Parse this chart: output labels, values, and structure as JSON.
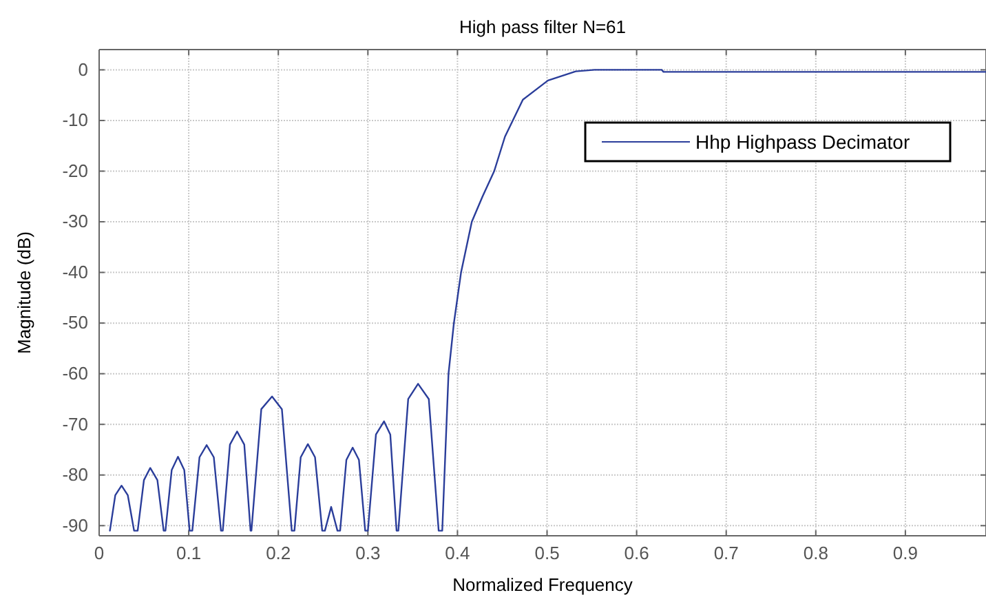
{
  "chart_data": {
    "type": "line",
    "title": "High pass filter N=61",
    "xlabel": "Normalized Frequency",
    "ylabel": "Magnitude (dB)",
    "xlim": [
      0,
      0.99
    ],
    "xticks": [
      0,
      0.1,
      0.2,
      0.3,
      0.4,
      0.5,
      0.6,
      0.7,
      0.8,
      0.9
    ],
    "ylim": [
      -92,
      4
    ],
    "yticks": [
      0,
      -10,
      -20,
      -30,
      -40,
      -50,
      -60,
      -70,
      -80,
      -90
    ],
    "grid": true,
    "legend": "top right",
    "marker": "none",
    "line_style": "solid",
    "series": [
      {
        "name": "Hhp Highpass Decimator",
        "color": "#2a3d9a",
        "x": [
          0.012,
          0.018,
          0.025,
          0.032,
          0.039,
          0.043,
          0.05,
          0.057,
          0.065,
          0.072,
          0.074,
          0.081,
          0.088,
          0.095,
          0.101,
          0.104,
          0.112,
          0.12,
          0.128,
          0.136,
          0.138,
          0.146,
          0.154,
          0.162,
          0.169,
          0.17,
          0.181,
          0.193,
          0.204,
          0.215,
          0.218,
          0.225,
          0.233,
          0.241,
          0.249,
          0.252,
          0.259,
          0.266,
          0.269,
          0.276,
          0.283,
          0.29,
          0.297,
          0.3,
          0.309,
          0.318,
          0.325,
          0.332,
          0.334,
          0.345,
          0.356,
          0.368,
          0.379,
          0.383,
          0.39,
          0.396,
          0.404,
          0.416,
          0.428,
          0.441,
          0.453,
          0.473,
          0.501,
          0.532,
          0.553,
          0.628,
          0.63,
          0.99
        ],
        "values": [
          -91,
          -84,
          -82.1,
          -84,
          -91,
          -91,
          -81,
          -78.6,
          -81,
          -91,
          -91,
          -79,
          -76.4,
          -79,
          -91,
          -91,
          -76.5,
          -74.1,
          -76.5,
          -91,
          -91,
          -74,
          -71.4,
          -74,
          -91,
          -91,
          -67,
          -64.5,
          -67,
          -91,
          -91,
          -76.5,
          -73.9,
          -76.5,
          -91,
          -91,
          -86.3,
          -91,
          -91,
          -77,
          -74.6,
          -77,
          -91,
          -91,
          -72,
          -69.4,
          -72,
          -91,
          -91,
          -65,
          -62,
          -65,
          -91,
          -91,
          -60,
          -50,
          -40,
          -30,
          -25,
          -20,
          -13.2,
          -5.9,
          -2.1,
          -0.3,
          0,
          0,
          -0.4,
          -0.4
        ]
      }
    ]
  }
}
